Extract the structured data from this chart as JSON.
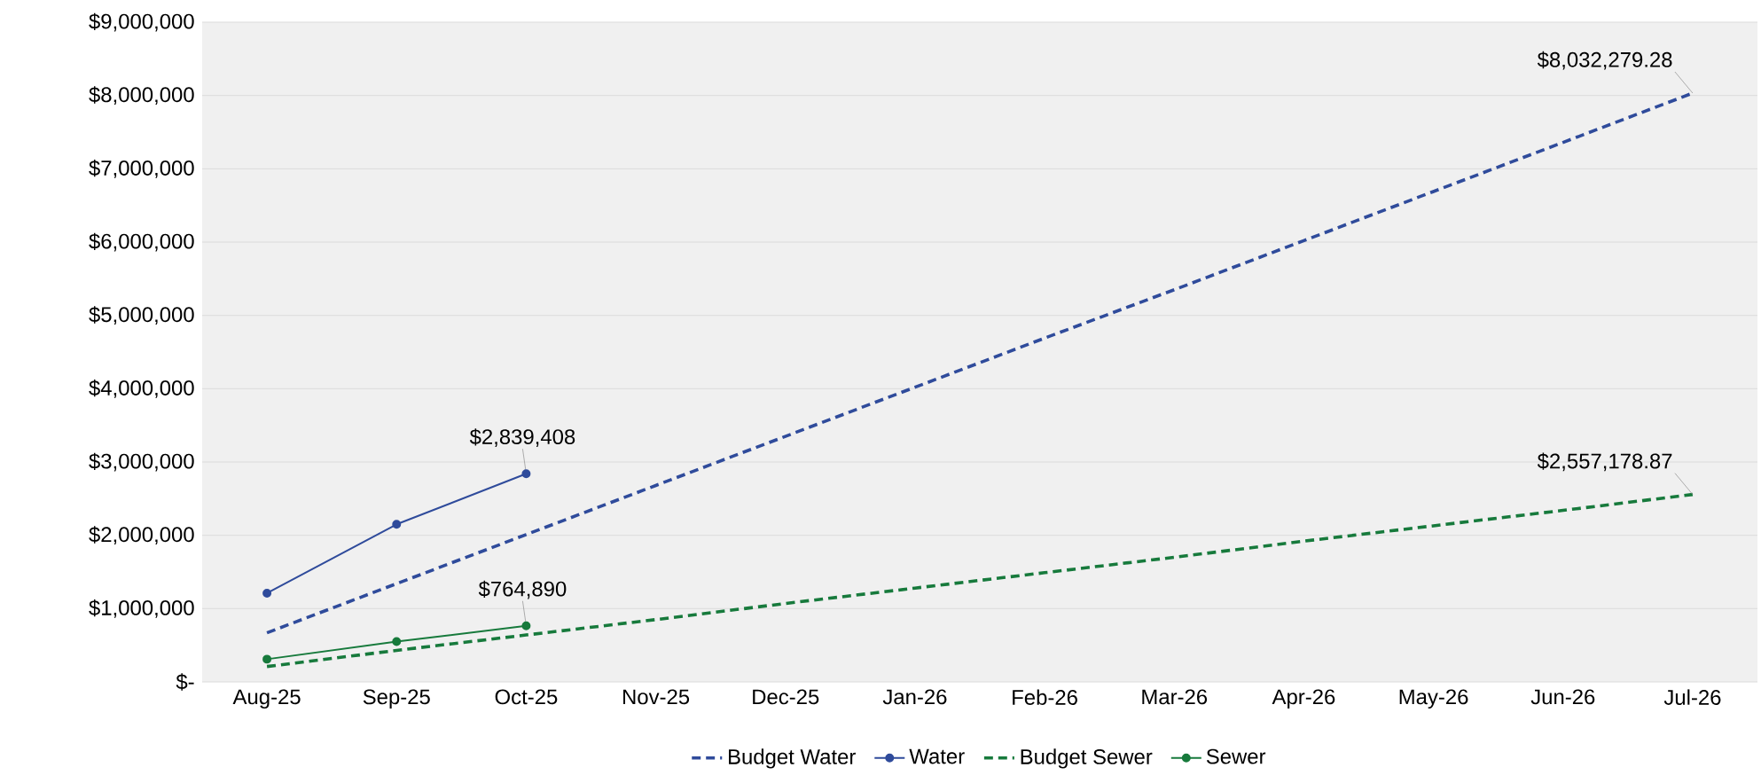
{
  "chart_data": {
    "type": "line",
    "categories": [
      "Aug-25",
      "Sep-25",
      "Oct-25",
      "Nov-25",
      "Dec-25",
      "Jan-26",
      "Feb-26",
      "Mar-26",
      "Apr-26",
      "May-26",
      "Jun-26",
      "Jul-26"
    ],
    "series": [
      {
        "name": "Budget Water",
        "color": "#2f4b9b",
        "line_style": "dashed",
        "marker": "none",
        "values": [
          670000,
          1340000,
          2010000,
          2680000,
          3350000,
          4020000,
          4690000,
          5350000,
          6020000,
          6690000,
          7360000,
          8032279.28
        ],
        "value_labels": [
          null,
          null,
          null,
          null,
          null,
          null,
          null,
          null,
          null,
          null,
          null,
          "$8,032,279.28"
        ]
      },
      {
        "name": "Water",
        "color": "#2f4b9b",
        "line_style": "solid",
        "marker": "circle",
        "values": [
          1210000,
          2150000,
          2839408,
          null,
          null,
          null,
          null,
          null,
          null,
          null,
          null,
          null
        ],
        "value_labels": [
          null,
          null,
          "$2,839,408",
          null,
          null,
          null,
          null,
          null,
          null,
          null,
          null,
          null
        ]
      },
      {
        "name": "Budget Sewer",
        "color": "#177a3c",
        "line_style": "dashed",
        "marker": "none",
        "values": [
          210000,
          430000,
          640000,
          850000,
          1070000,
          1280000,
          1490000,
          1700000,
          1920000,
          2130000,
          2340000,
          2557178.87
        ],
        "value_labels": [
          null,
          null,
          null,
          null,
          null,
          null,
          null,
          null,
          null,
          null,
          null,
          "$2,557,178.87"
        ]
      },
      {
        "name": "Sewer",
        "color": "#177a3c",
        "line_style": "solid",
        "marker": "circle",
        "values": [
          310000,
          550000,
          764890,
          null,
          null,
          null,
          null,
          null,
          null,
          null,
          null,
          null
        ],
        "value_labels": [
          null,
          null,
          "$764,890",
          null,
          null,
          null,
          null,
          null,
          null,
          null,
          null,
          null
        ]
      }
    ],
    "ylim": [
      0,
      9000000
    ],
    "yticks": [
      {
        "value": 0,
        "label": "$-"
      },
      {
        "value": 1000000,
        "label": "$1,000,000"
      },
      {
        "value": 2000000,
        "label": "$2,000,000"
      },
      {
        "value": 3000000,
        "label": "$3,000,000"
      },
      {
        "value": 4000000,
        "label": "$4,000,000"
      },
      {
        "value": 5000000,
        "label": "$5,000,000"
      },
      {
        "value": 6000000,
        "label": "$6,000,000"
      },
      {
        "value": 7000000,
        "label": "$7,000,000"
      },
      {
        "value": 8000000,
        "label": "$8,000,000"
      },
      {
        "value": 9000000,
        "label": "$9,000,000"
      }
    ],
    "grid": "y",
    "legend": "bottom"
  }
}
